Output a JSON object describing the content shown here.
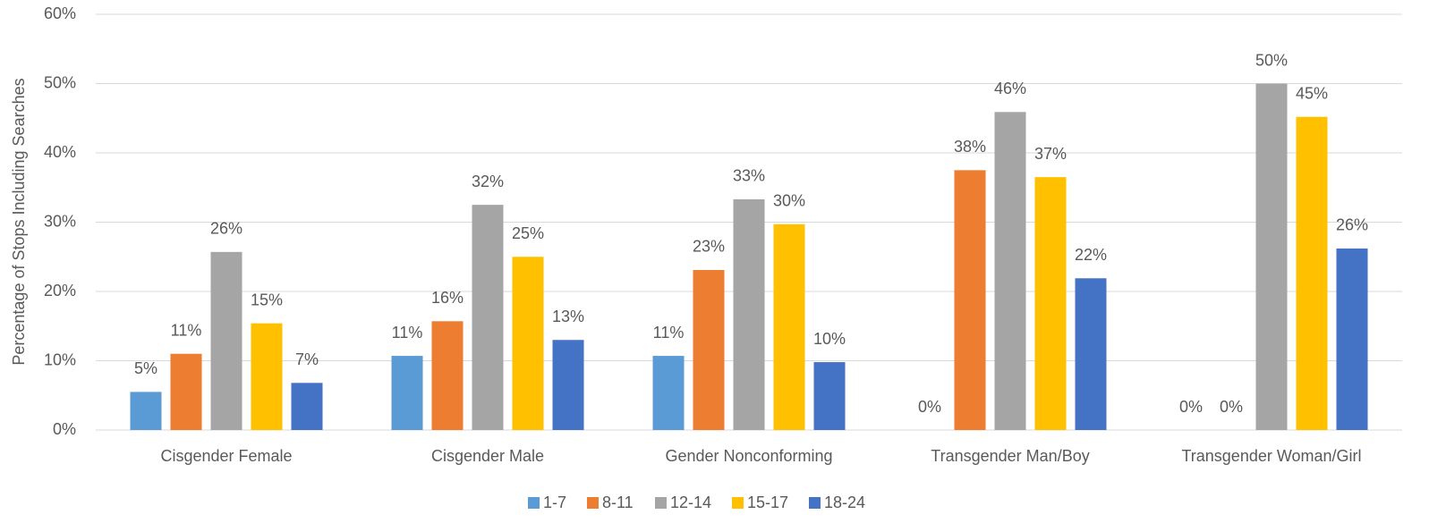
{
  "chart_data": {
    "type": "bar",
    "y_label": "Percentage of Stops Including Searches",
    "categories": [
      "Cisgender Female",
      "Cisgender Male",
      "Gender Nonconforming",
      "Transgender Man/Boy",
      "Transgender Woman/Girl"
    ],
    "series": [
      {
        "name": "1-7",
        "color": "#5b9bd5",
        "values": [
          5.5,
          10.7,
          10.7,
          0,
          0
        ],
        "value_labels": [
          "5%",
          "11%",
          "11%",
          "0%",
          "0%"
        ]
      },
      {
        "name": "8-11",
        "color": "#ed7d31",
        "values": [
          11.0,
          15.7,
          23.1,
          37.5,
          0
        ],
        "value_labels": [
          "11%",
          "16%",
          "23%",
          "38%",
          "0%"
        ]
      },
      {
        "name": "12-14",
        "color": "#a5a5a5",
        "values": [
          25.7,
          32.5,
          33.3,
          45.9,
          50.0
        ],
        "value_labels": [
          "26%",
          "32%",
          "33%",
          "46%",
          "50%"
        ]
      },
      {
        "name": "15-17",
        "color": "#ffc000",
        "values": [
          15.4,
          25.0,
          29.7,
          36.5,
          45.2
        ],
        "value_labels": [
          "15%",
          "25%",
          "30%",
          "37%",
          "45%"
        ]
      },
      {
        "name": "18-24",
        "color": "#4472c4",
        "values": [
          6.8,
          13.0,
          9.8,
          21.9,
          26.2
        ],
        "value_labels": [
          "7%",
          "13%",
          "10%",
          "22%",
          "26%"
        ]
      }
    ],
    "ylim": [
      0,
      60
    ],
    "yticks": [
      {
        "value": 0,
        "label": "0%"
      },
      {
        "value": 10,
        "label": "10%"
      },
      {
        "value": 20,
        "label": "20%"
      },
      {
        "value": 30,
        "label": "30%"
      },
      {
        "value": 40,
        "label": "40%"
      },
      {
        "value": 50,
        "label": "50%"
      },
      {
        "value": 60,
        "label": "60%"
      }
    ],
    "grid": true
  }
}
